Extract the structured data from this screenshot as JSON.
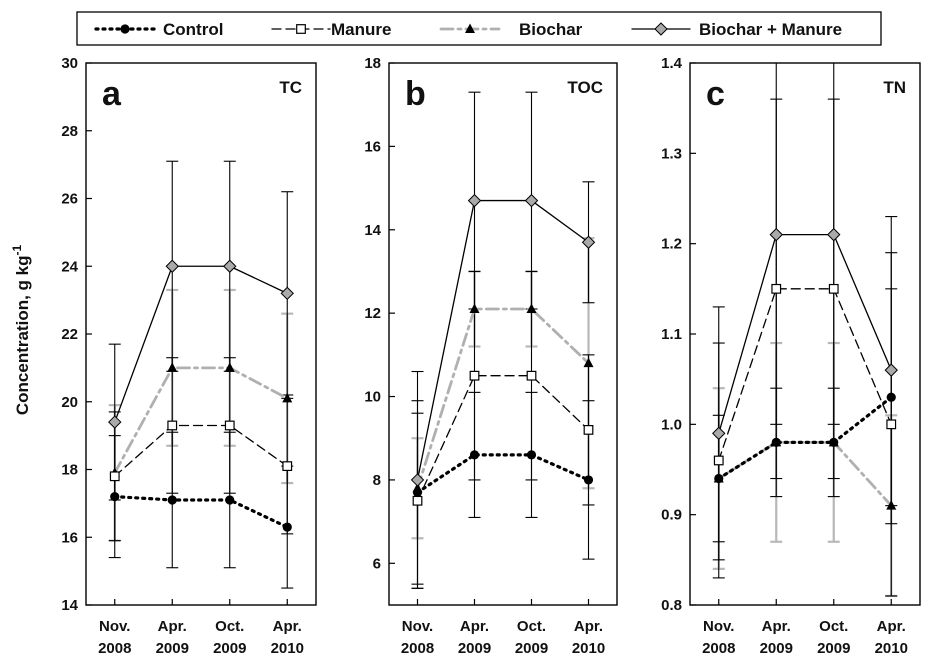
{
  "figure": {
    "ylabel_main": "Concentration, g kg",
    "ylabel_sup": "-1"
  },
  "legend": [
    {
      "name": "Control",
      "color": "#000000",
      "dash": "dot",
      "marker": "circle"
    },
    {
      "name": "Manure",
      "color": "#000000",
      "dash": "dash",
      "marker": "square-open"
    },
    {
      "name": "Biochar",
      "color": "#b0b0b0",
      "dash": "dashdot",
      "marker": "triangle"
    },
    {
      "name": "Biochar + Manure",
      "color": "#000000",
      "dash": "solid",
      "marker": "diamond-gray"
    }
  ],
  "chart_data": [
    {
      "type": "line",
      "panel_letter": "a",
      "panel_label": "TC",
      "categories": [
        [
          "Nov.",
          "2008"
        ],
        [
          "Apr.",
          "2009"
        ],
        [
          "Oct.",
          "2009"
        ],
        [
          "Apr.",
          "2010"
        ]
      ],
      "ylim": [
        14,
        30
      ],
      "yticks": [
        14,
        16,
        18,
        20,
        22,
        24,
        26,
        28,
        30
      ],
      "ytick_decimals": 0,
      "series": [
        {
          "name": "Control",
          "values": [
            17.2,
            17.1,
            17.1,
            16.3
          ],
          "err": [
            1.8,
            2.0,
            2.0,
            1.8
          ]
        },
        {
          "name": "Manure",
          "values": [
            17.8,
            19.3,
            19.3,
            18.1
          ],
          "err": [
            1.9,
            2.0,
            2.0,
            2.0
          ]
        },
        {
          "name": "Biochar",
          "values": [
            17.9,
            21.0,
            21.0,
            20.1
          ],
          "err": [
            2.0,
            2.3,
            2.3,
            2.5
          ]
        },
        {
          "name": "Biochar + Manure",
          "values": [
            19.4,
            24.0,
            24.0,
            23.2
          ],
          "err": [
            2.3,
            3.1,
            3.1,
            3.0
          ]
        }
      ]
    },
    {
      "type": "line",
      "panel_letter": "b",
      "panel_label": "TOC",
      "categories": [
        [
          "Nov.",
          "2008"
        ],
        [
          "Apr.",
          "2009"
        ],
        [
          "Oct.",
          "2009"
        ],
        [
          "Apr.",
          "2010"
        ]
      ],
      "ylim": [
        5,
        18
      ],
      "yticks": [
        6,
        8,
        10,
        12,
        14,
        16,
        18
      ],
      "ytick_decimals": 0,
      "series": [
        {
          "name": "Control",
          "values": [
            7.7,
            8.6,
            8.6,
            8.0
          ],
          "err": [
            2.2,
            1.5,
            1.5,
            1.9
          ]
        },
        {
          "name": "Manure",
          "values": [
            7.5,
            10.5,
            10.5,
            9.2
          ],
          "err": [
            2.1,
            2.5,
            2.5,
            1.8
          ]
        },
        {
          "name": "Biochar",
          "values": [
            7.8,
            12.1,
            12.1,
            10.8
          ],
          "err": [
            1.2,
            0.9,
            0.9,
            3.0
          ]
        },
        {
          "name": "Biochar + Manure",
          "values": [
            8.0,
            14.7,
            14.7,
            13.7
          ],
          "err": [
            2.6,
            2.6,
            2.6,
            1.45
          ]
        }
      ]
    },
    {
      "type": "line",
      "panel_letter": "c",
      "panel_label": "TN",
      "categories": [
        [
          "Nov.",
          "2008"
        ],
        [
          "Apr.",
          "2009"
        ],
        [
          "Oct.",
          "2009"
        ],
        [
          "Apr.",
          "2010"
        ]
      ],
      "ylim": [
        0.8,
        1.4
      ],
      "yticks": [
        0.8,
        0.9,
        1.0,
        1.1,
        1.2,
        1.3,
        1.4
      ],
      "ytick_decimals": 1,
      "series": [
        {
          "name": "Control",
          "values": [
            0.94,
            0.98,
            0.98,
            1.03
          ],
          "err": [
            0.07,
            0.06,
            0.06,
            0.12
          ]
        },
        {
          "name": "Manure",
          "values": [
            0.96,
            1.15,
            1.15,
            1.0
          ],
          "err": [
            0.13,
            0.21,
            0.21,
            0.19
          ]
        },
        {
          "name": "Biochar",
          "values": [
            0.94,
            0.98,
            0.98,
            0.91
          ],
          "err": [
            0.1,
            0.11,
            0.11,
            0.1
          ]
        },
        {
          "name": "Biochar + Manure",
          "values": [
            0.99,
            1.21,
            1.21,
            1.06
          ],
          "err": [
            0.14,
            0.21,
            0.21,
            0.17
          ]
        }
      ]
    }
  ]
}
